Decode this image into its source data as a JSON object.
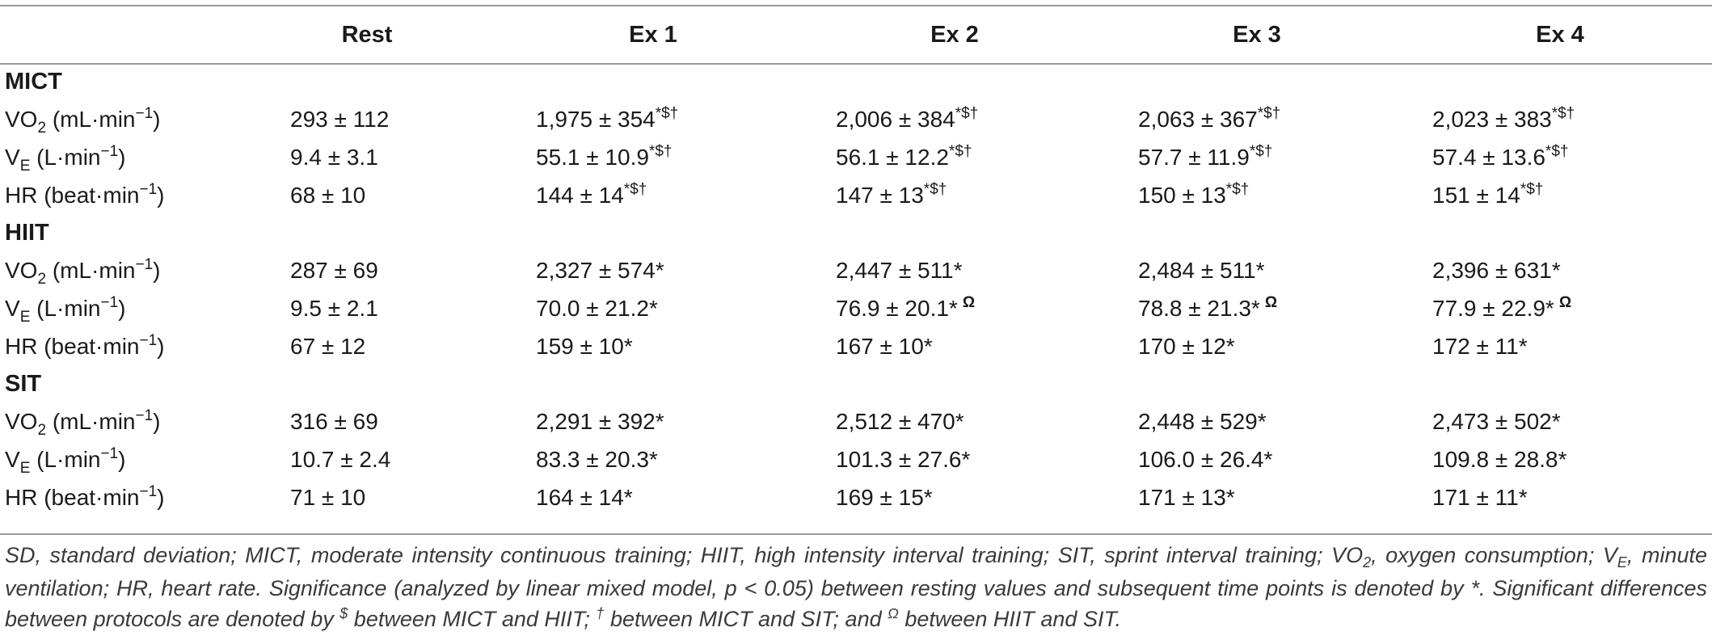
{
  "table": {
    "headers": [
      "",
      "Rest",
      "Ex 1",
      "Ex 2",
      "Ex 3",
      "Ex 4"
    ],
    "groups": [
      {
        "name": "MICT",
        "rows": [
          {
            "label": {
              "main": "VO",
              "sub": "2",
              "unit": " (mL·min",
              "sup": "−1",
              "close": ")"
            },
            "values": [
              {
                "v": "293 ± 112",
                "sup": "",
                "omega": ""
              },
              {
                "v": "1,975 ± 354",
                "sup": "*$†",
                "omega": ""
              },
              {
                "v": "2,006 ± 384",
                "sup": "*$†",
                "omega": ""
              },
              {
                "v": "2,063 ± 367",
                "sup": "*$†",
                "omega": ""
              },
              {
                "v": "2,023 ± 383",
                "sup": "*$†",
                "omega": ""
              }
            ]
          },
          {
            "label": {
              "main": "V",
              "sub": "E",
              "unit": " (L·min",
              "sup": "−1",
              "close": ")"
            },
            "values": [
              {
                "v": "9.4 ± 3.1",
                "sup": "",
                "omega": ""
              },
              {
                "v": "55.1 ± 10.9",
                "sup": "*$†",
                "omega": ""
              },
              {
                "v": "56.1 ± 12.2",
                "sup": "*$†",
                "omega": ""
              },
              {
                "v": "57.7 ± 11.9",
                "sup": "*$†",
                "omega": ""
              },
              {
                "v": "57.4 ± 13.6",
                "sup": "*$†",
                "omega": ""
              }
            ]
          },
          {
            "label": {
              "main": "HR",
              "sub": "",
              "unit": " (beat·min",
              "sup": "−1",
              "close": ")"
            },
            "values": [
              {
                "v": "68 ± 10",
                "sup": "",
                "omega": ""
              },
              {
                "v": "144 ± 14",
                "sup": "*$†",
                "omega": ""
              },
              {
                "v": "147 ± 13",
                "sup": "*$†",
                "omega": ""
              },
              {
                "v": "150 ± 13",
                "sup": "*$†",
                "omega": ""
              },
              {
                "v": "151 ± 14",
                "sup": "*$†",
                "omega": ""
              }
            ]
          }
        ]
      },
      {
        "name": "HIIT",
        "rows": [
          {
            "label": {
              "main": "VO",
              "sub": "2",
              "unit": " (mL·min",
              "sup": "−1",
              "close": ")"
            },
            "values": [
              {
                "v": "287 ± 69",
                "sup": "",
                "omega": ""
              },
              {
                "v": "2,327 ± 574*",
                "sup": "",
                "omega": ""
              },
              {
                "v": "2,447 ± 511*",
                "sup": "",
                "omega": ""
              },
              {
                "v": "2,484 ± 511*",
                "sup": "",
                "omega": ""
              },
              {
                "v": "2,396 ± 631*",
                "sup": "",
                "omega": ""
              }
            ]
          },
          {
            "label": {
              "main": "V",
              "sub": "E",
              "unit": " (L·min",
              "sup": "−1",
              "close": ")"
            },
            "values": [
              {
                "v": "9.5 ± 2.1",
                "sup": "",
                "omega": ""
              },
              {
                "v": "70.0 ± 21.2*",
                "sup": "",
                "omega": ""
              },
              {
                "v": "76.9 ± 20.1*",
                "sup": "",
                "omega": "Ω"
              },
              {
                "v": "78.8 ± 21.3*",
                "sup": "",
                "omega": "Ω"
              },
              {
                "v": "77.9 ± 22.9*",
                "sup": "",
                "omega": "Ω"
              }
            ]
          },
          {
            "label": {
              "main": "HR",
              "sub": "",
              "unit": " (beat·min",
              "sup": "−1",
              "close": ")"
            },
            "values": [
              {
                "v": "67 ± 12",
                "sup": "",
                "omega": ""
              },
              {
                "v": "159 ± 10*",
                "sup": "",
                "omega": ""
              },
              {
                "v": "167 ± 10*",
                "sup": "",
                "omega": ""
              },
              {
                "v": "170 ± 12*",
                "sup": "",
                "omega": ""
              },
              {
                "v": "172 ± 11*",
                "sup": "",
                "omega": ""
              }
            ]
          }
        ]
      },
      {
        "name": "SIT",
        "rows": [
          {
            "label": {
              "main": "VO",
              "sub": "2",
              "unit": " (mL·min",
              "sup": "−1",
              "close": ")"
            },
            "values": [
              {
                "v": "316 ± 69",
                "sup": "",
                "omega": ""
              },
              {
                "v": "2,291 ± 392*",
                "sup": "",
                "omega": ""
              },
              {
                "v": "2,512 ± 470*",
                "sup": "",
                "omega": ""
              },
              {
                "v": "2,448 ± 529*",
                "sup": "",
                "omega": ""
              },
              {
                "v": "2,473 ± 502*",
                "sup": "",
                "omega": ""
              }
            ]
          },
          {
            "label": {
              "main": "V",
              "sub": "E",
              "unit": " (L·min",
              "sup": "−1",
              "close": ")"
            },
            "values": [
              {
                "v": "10.7 ± 2.4",
                "sup": "",
                "omega": ""
              },
              {
                "v": "83.3 ± 20.3*",
                "sup": "",
                "omega": ""
              },
              {
                "v": "101.3 ± 27.6*",
                "sup": "",
                "omega": ""
              },
              {
                "v": "106.0 ± 26.4*",
                "sup": "",
                "omega": ""
              },
              {
                "v": "109.8 ± 28.8*",
                "sup": "",
                "omega": ""
              }
            ]
          },
          {
            "label": {
              "main": "HR",
              "sub": "",
              "unit": " (beat·min",
              "sup": "−1",
              "close": ")"
            },
            "values": [
              {
                "v": "71 ± 10",
                "sup": "",
                "omega": ""
              },
              {
                "v": "164 ± 14*",
                "sup": "",
                "omega": ""
              },
              {
                "v": "169 ± 15*",
                "sup": "",
                "omega": ""
              },
              {
                "v": "171 ± 13*",
                "sup": "",
                "omega": ""
              },
              {
                "v": "171 ± 11*",
                "sup": "",
                "omega": ""
              }
            ]
          }
        ]
      }
    ]
  },
  "footnote": {
    "part1": "SD, standard deviation; MICT, moderate intensity continuous training; HIIT, high intensity interval training; SIT, sprint interval training; VO",
    "sub1": "2",
    "part2": ", oxygen consumption; V",
    "sub2": "E",
    "part3": ", minute ventilation; HR, heart rate. Significance (analyzed by linear mixed model, p < 0.05) between resting values and subsequent time points is denoted by *. Significant differences between protocols are denoted by ",
    "sup1": "$",
    "part4": " between MICT and HIIT; ",
    "sup2": "†",
    "part5": " between MICT and SIT; and ",
    "sup3": "Ω",
    "part6": " between HIIT and SIT."
  }
}
